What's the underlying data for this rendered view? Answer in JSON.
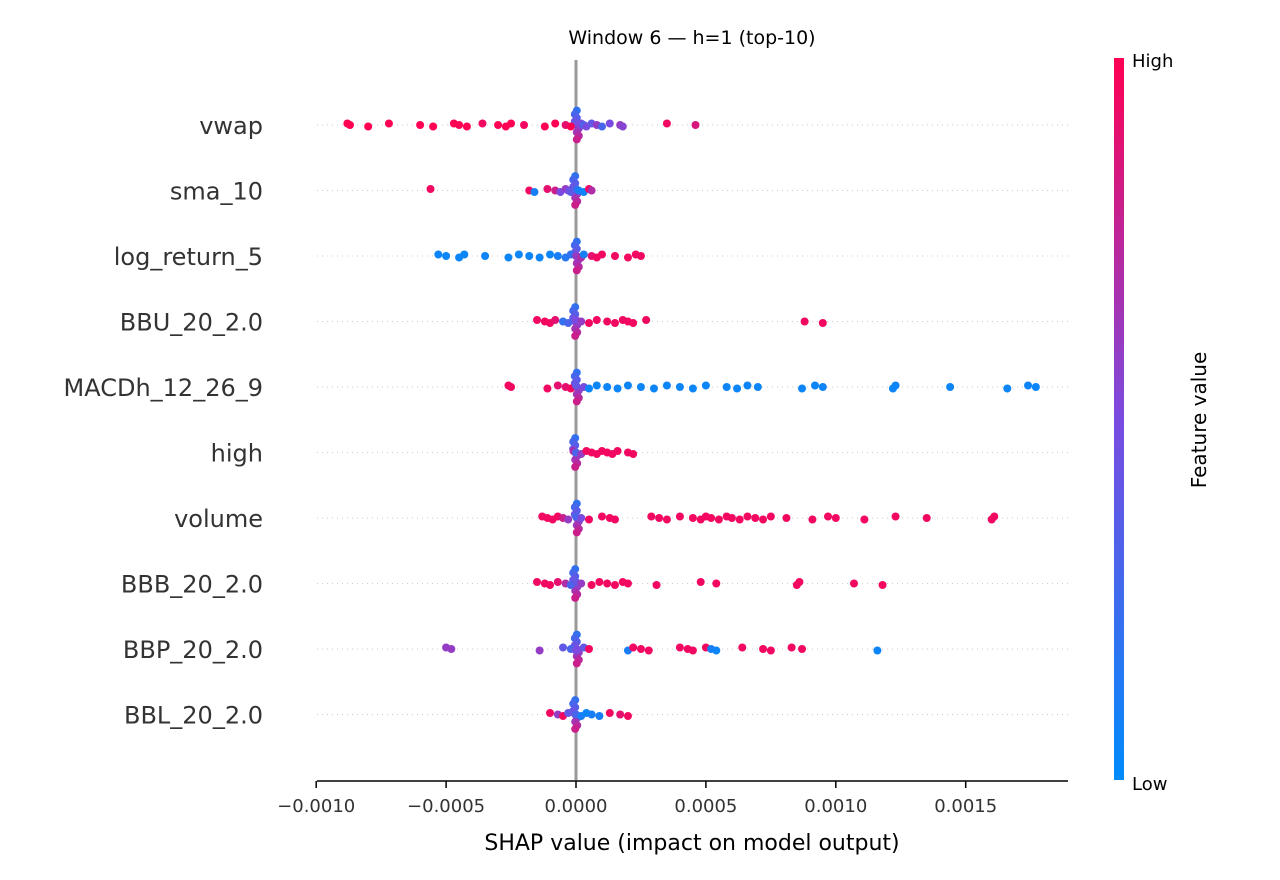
{
  "chart_data": {
    "type": "scatter",
    "subtype": "shap-beeswarm",
    "title": "Window 6 — h=1 (top-10)",
    "xlabel": "SHAP value (impact on model output)",
    "ylabel": "",
    "xlim": [
      -0.001,
      0.0019
    ],
    "xticks": [
      -0.001,
      -0.0005,
      0.0,
      0.0005,
      0.001,
      0.0015
    ],
    "xtick_labels": [
      "−0.0010",
      "−0.0005",
      "0.0000",
      "0.0005",
      "0.0010",
      "0.0015"
    ],
    "zero_line": 0.0,
    "colorbar": {
      "title": "Feature value",
      "high_label": "High",
      "low_label": "Low",
      "high_color": "#ff0052",
      "low_color": "#008bfb"
    },
    "features": [
      {
        "name": "vwap",
        "points": [
          [
            -0.00088,
            1.0
          ],
          [
            -0.00087,
            1.0
          ],
          [
            -0.0008,
            1.0
          ],
          [
            -0.00072,
            1.0
          ],
          [
            -0.0006,
            1.0
          ],
          [
            -0.00055,
            1.0
          ],
          [
            -0.00047,
            1.0
          ],
          [
            -0.00045,
            1.0
          ],
          [
            -0.00042,
            1.0
          ],
          [
            -0.00036,
            0.95
          ],
          [
            -0.0003,
            1.0
          ],
          [
            -0.00027,
            1.0
          ],
          [
            -0.00025,
            1.0
          ],
          [
            -0.0002,
            0.95
          ],
          [
            -0.00012,
            1.0
          ],
          [
            -8e-05,
            1.0
          ],
          [
            -4e-05,
            0.9
          ],
          [
            -2e-05,
            1.0
          ],
          [
            2e-05,
            0.5
          ],
          [
            3e-05,
            0.3
          ],
          [
            4e-05,
            0.5
          ],
          [
            6e-05,
            0.4
          ],
          [
            8e-05,
            0.6
          ],
          [
            0.0001,
            0.3
          ],
          [
            0.00013,
            0.5
          ],
          [
            0.00017,
            0.6
          ],
          [
            0.00018,
            0.55
          ],
          [
            0.00035,
            0.95
          ],
          [
            0.00046,
            0.85
          ]
        ]
      },
      {
        "name": "sma_10",
        "points": [
          [
            -0.00056,
            0.95
          ],
          [
            -0.00018,
            0.95
          ],
          [
            -0.00016,
            0.1
          ],
          [
            -0.00011,
            0.9
          ],
          [
            -8e-05,
            0.8
          ],
          [
            -6e-05,
            0.5
          ],
          [
            -4e-05,
            0.6
          ],
          [
            -3e-05,
            0.5
          ],
          [
            -2e-05,
            0.4
          ],
          [
            0.0,
            0.3
          ],
          [
            1e-05,
            0.1
          ],
          [
            3e-05,
            0.05
          ],
          [
            5e-05,
            0.95
          ],
          [
            6e-05,
            0.7
          ]
        ]
      },
      {
        "name": "log_return_5",
        "points": [
          [
            -0.00053,
            0.05
          ],
          [
            -0.0005,
            0.05
          ],
          [
            -0.00045,
            0.05
          ],
          [
            -0.00043,
            0.05
          ],
          [
            -0.00035,
            0.05
          ],
          [
            -0.00026,
            0.05
          ],
          [
            -0.00022,
            0.05
          ],
          [
            -0.00018,
            0.05
          ],
          [
            -0.00014,
            0.05
          ],
          [
            -0.0001,
            0.05
          ],
          [
            -7e-05,
            0.1
          ],
          [
            -4e-05,
            0.15
          ],
          [
            -2e-05,
            0.2
          ],
          [
            0.0,
            0.6
          ],
          [
            2e-05,
            0.7
          ],
          [
            3e-05,
            0.1
          ],
          [
            6e-05,
            0.9
          ],
          [
            8e-05,
            0.95
          ],
          [
            0.0001,
            0.95
          ],
          [
            0.00015,
            0.95
          ],
          [
            0.0002,
            0.95
          ],
          [
            0.00023,
            0.95
          ],
          [
            0.00025,
            0.95
          ]
        ]
      },
      {
        "name": "BBU_20_2.0",
        "points": [
          [
            -0.00015,
            0.95
          ],
          [
            -0.00012,
            0.95
          ],
          [
            -0.0001,
            0.95
          ],
          [
            -8e-05,
            0.9
          ],
          [
            -5e-05,
            0.2
          ],
          [
            -3e-05,
            0.3
          ],
          [
            0.0,
            0.5
          ],
          [
            2e-05,
            0.6
          ],
          [
            5e-05,
            0.95
          ],
          [
            8e-05,
            0.95
          ],
          [
            0.00012,
            0.95
          ],
          [
            0.00015,
            0.95
          ],
          [
            0.00018,
            0.95
          ],
          [
            0.0002,
            0.95
          ],
          [
            0.00022,
            0.95
          ],
          [
            0.00027,
            0.95
          ],
          [
            0.00088,
            0.95
          ],
          [
            0.00095,
            0.95
          ]
        ]
      },
      {
        "name": "MACDh_12_26_9",
        "points": [
          [
            -0.00026,
            0.95
          ],
          [
            -0.00025,
            0.95
          ],
          [
            -0.00011,
            0.95
          ],
          [
            -7e-05,
            0.9
          ],
          [
            -4e-05,
            0.9
          ],
          [
            -2e-05,
            0.95
          ],
          [
            0.0,
            0.4
          ],
          [
            3e-05,
            0.5
          ],
          [
            5e-05,
            0.05
          ],
          [
            8e-05,
            0.05
          ],
          [
            0.00012,
            0.05
          ],
          [
            0.00016,
            0.05
          ],
          [
            0.0002,
            0.05
          ],
          [
            0.00025,
            0.05
          ],
          [
            0.0003,
            0.05
          ],
          [
            0.00035,
            0.05
          ],
          [
            0.0004,
            0.05
          ],
          [
            0.00045,
            0.05
          ],
          [
            0.0005,
            0.05
          ],
          [
            0.00058,
            0.05
          ],
          [
            0.00062,
            0.05
          ],
          [
            0.00066,
            0.05
          ],
          [
            0.0007,
            0.05
          ],
          [
            0.00087,
            0.05
          ],
          [
            0.00092,
            0.05
          ],
          [
            0.00095,
            0.05
          ],
          [
            0.00122,
            0.05
          ],
          [
            0.00123,
            0.05
          ],
          [
            0.00144,
            0.05
          ],
          [
            0.00166,
            0.05
          ],
          [
            0.00174,
            0.05
          ],
          [
            0.00177,
            0.05
          ]
        ]
      },
      {
        "name": "high",
        "points": [
          [
            -1e-05,
            0.7
          ],
          [
            0.0,
            0.3
          ],
          [
            2e-05,
            0.6
          ],
          [
            4e-05,
            0.95
          ],
          [
            6e-05,
            0.95
          ],
          [
            8e-05,
            0.95
          ],
          [
            0.0001,
            0.95
          ],
          [
            0.00012,
            0.95
          ],
          [
            0.00014,
            0.95
          ],
          [
            0.00016,
            0.95
          ],
          [
            0.0002,
            0.95
          ],
          [
            0.00022,
            0.95
          ]
        ]
      },
      {
        "name": "volume",
        "points": [
          [
            -0.00013,
            0.95
          ],
          [
            -0.00011,
            0.95
          ],
          [
            -9e-05,
            0.95
          ],
          [
            -7e-05,
            0.95
          ],
          [
            -5e-05,
            0.8
          ],
          [
            -3e-05,
            0.6
          ],
          [
            0.0,
            0.3
          ],
          [
            2e-05,
            0.5
          ],
          [
            5e-05,
            0.95
          ],
          [
            0.0001,
            0.95
          ],
          [
            0.00013,
            0.95
          ],
          [
            0.00015,
            0.95
          ],
          [
            0.00029,
            0.95
          ],
          [
            0.00032,
            0.95
          ],
          [
            0.00035,
            0.95
          ],
          [
            0.0004,
            0.95
          ],
          [
            0.00045,
            0.95
          ],
          [
            0.00048,
            0.95
          ],
          [
            0.0005,
            0.95
          ],
          [
            0.00052,
            0.95
          ],
          [
            0.00055,
            0.95
          ],
          [
            0.00058,
            0.95
          ],
          [
            0.0006,
            0.95
          ],
          [
            0.00063,
            0.95
          ],
          [
            0.00066,
            0.95
          ],
          [
            0.00069,
            0.95
          ],
          [
            0.00072,
            0.95
          ],
          [
            0.00075,
            0.95
          ],
          [
            0.00081,
            0.95
          ],
          [
            0.00091,
            0.95
          ],
          [
            0.00097,
            0.95
          ],
          [
            0.001,
            0.95
          ],
          [
            0.00111,
            0.95
          ],
          [
            0.00123,
            0.95
          ],
          [
            0.00135,
            0.95
          ],
          [
            0.0016,
            0.95
          ],
          [
            0.00161,
            0.95
          ]
        ]
      },
      {
        "name": "BBB_20_2.0",
        "points": [
          [
            -0.00015,
            0.95
          ],
          [
            -0.00012,
            0.95
          ],
          [
            -0.0001,
            0.95
          ],
          [
            -7e-05,
            0.9
          ],
          [
            -4e-05,
            0.7
          ],
          [
            -2e-05,
            0.3
          ],
          [
            0.0,
            0.4
          ],
          [
            2e-05,
            0.6
          ],
          [
            6e-05,
            0.95
          ],
          [
            9e-05,
            0.95
          ],
          [
            0.00012,
            0.95
          ],
          [
            0.00015,
            0.95
          ],
          [
            0.00018,
            0.95
          ],
          [
            0.0002,
            0.95
          ],
          [
            0.00031,
            0.95
          ],
          [
            0.00048,
            0.95
          ],
          [
            0.00054,
            0.95
          ],
          [
            0.00085,
            0.95
          ],
          [
            0.00086,
            0.95
          ],
          [
            0.00107,
            0.95
          ],
          [
            0.00118,
            0.95
          ]
        ]
      },
      {
        "name": "BBP_20_2.0",
        "points": [
          [
            -0.0005,
            0.6
          ],
          [
            -0.00048,
            0.6
          ],
          [
            -0.00014,
            0.6
          ],
          [
            -5e-05,
            0.4
          ],
          [
            -2e-05,
            0.3
          ],
          [
            0.0,
            0.5
          ],
          [
            3e-05,
            0.4
          ],
          [
            5e-05,
            0.95
          ],
          [
            0.0002,
            0.1
          ],
          [
            0.00022,
            0.95
          ],
          [
            0.00025,
            0.95
          ],
          [
            0.00028,
            0.95
          ],
          [
            0.0004,
            0.95
          ],
          [
            0.00043,
            0.95
          ],
          [
            0.00045,
            0.95
          ],
          [
            0.0005,
            0.95
          ],
          [
            0.00052,
            0.1
          ],
          [
            0.00054,
            0.05
          ],
          [
            0.00064,
            0.95
          ],
          [
            0.00072,
            0.95
          ],
          [
            0.00075,
            0.95
          ],
          [
            0.00083,
            0.95
          ],
          [
            0.00087,
            0.95
          ],
          [
            0.00116,
            0.05
          ]
        ]
      },
      {
        "name": "BBL_20_2.0",
        "points": [
          [
            -0.0001,
            0.95
          ],
          [
            -7e-05,
            0.6
          ],
          [
            -5e-05,
            0.95
          ],
          [
            -3e-05,
            0.4
          ],
          [
            0.0,
            0.3
          ],
          [
            2e-05,
            0.1
          ],
          [
            4e-05,
            0.05
          ],
          [
            6e-05,
            0.1
          ],
          [
            9e-05,
            0.1
          ],
          [
            0.00013,
            0.95
          ],
          [
            0.00017,
            0.9
          ],
          [
            0.0002,
            0.95
          ]
        ]
      }
    ]
  }
}
